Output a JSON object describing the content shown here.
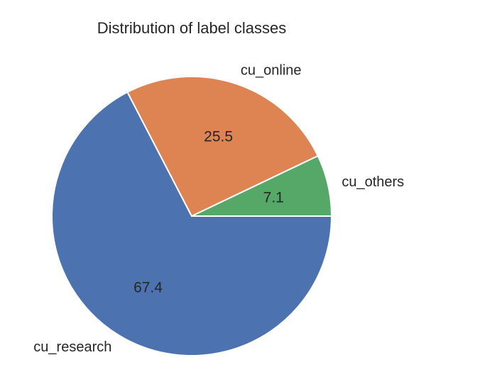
{
  "chart_data": {
    "type": "pie",
    "title": "Distribution of label classes",
    "slices": [
      {
        "label": "cu_research",
        "value": 67.4,
        "display": "67.4",
        "color": "#4c72b0"
      },
      {
        "label": "cu_online",
        "value": 25.5,
        "display": "25.5",
        "color": "#dd8452"
      },
      {
        "label": "cu_others",
        "value": 7.1,
        "display": "7.1",
        "color": "#55a868"
      }
    ],
    "start_angle_deg": 0,
    "direction": "clockwise",
    "wedge_edge_color": "#ffffff",
    "legend": "none"
  }
}
